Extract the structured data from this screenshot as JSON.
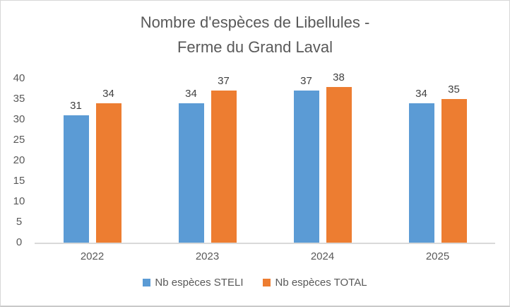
{
  "window": {
    "background": "#ffffff",
    "border_color": "#d7d7d7"
  },
  "chart_data": {
    "type": "bar",
    "title": "Nombre d'espèces de Libellules - Ferme du Grand Laval",
    "title_lines": [
      "Nombre d'espèces de Libellules -",
      "Ferme du Grand Laval"
    ],
    "categories": [
      "2022",
      "2023",
      "2024",
      "2025"
    ],
    "series": [
      {
        "name": "Nb espèces STELI",
        "color": "#5B9BD5",
        "values": [
          31,
          34,
          37,
          34
        ]
      },
      {
        "name": "Nb espèces TOTAL",
        "color": "#ED7D31",
        "values": [
          34,
          37,
          38,
          35
        ]
      }
    ],
    "xlabel": "",
    "ylabel": "",
    "ylim": [
      0,
      40
    ],
    "yticks": [
      0,
      5,
      10,
      15,
      20,
      25,
      30,
      35,
      40
    ],
    "grid": false,
    "data_labels": true,
    "legend_position": "bottom",
    "colors": {
      "title": "#595959",
      "axis_labels": "#595959",
      "data_labels": "#404040",
      "axis_line": "#d9d9d9"
    }
  }
}
